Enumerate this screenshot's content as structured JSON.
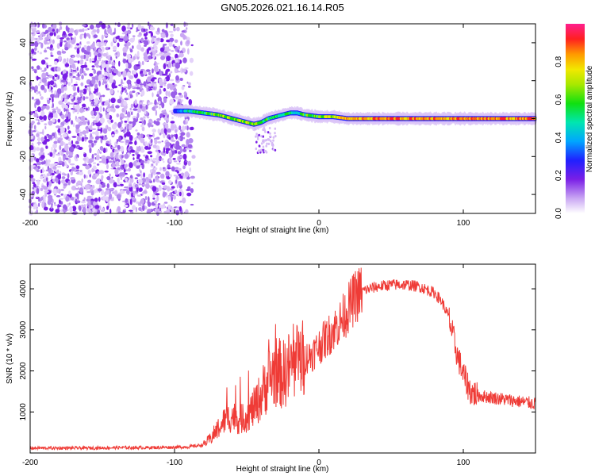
{
  "title": "GN05.2026.021.16.14.R05",
  "colors": {
    "line": "#ef3b36",
    "axis": "#000000",
    "background": "#ffffff"
  },
  "chart_data": [
    {
      "type": "heatmap",
      "name": "spectrogram",
      "xlabel": "Height of straight line (km)",
      "ylabel": "Frequency (Hz)",
      "xlim": [
        -200,
        150
      ],
      "ylim": [
        -50,
        50
      ],
      "xticks": [
        -200,
        -100,
        0,
        100
      ],
      "xtick_labels": [
        "-200",
        "-100",
        "0",
        "100"
      ],
      "yticks": [
        -40,
        -20,
        0,
        20,
        40
      ],
      "ytick_labels": [
        "-40",
        "-20",
        "0",
        "20",
        "40"
      ],
      "noise_region_x": [
        -200,
        -85
      ],
      "colorbar": {
        "label": "Normalized spectral amplitude",
        "range": [
          0,
          1
        ],
        "ticks": [
          0.0,
          0.2,
          0.4,
          0.6,
          0.8
        ],
        "tick_labels": [
          "0.0",
          "0.2",
          "0.4",
          "0.6",
          "0.8"
        ]
      },
      "ridge": {
        "x": [
          -100,
          -90,
          -80,
          -70,
          -60,
          -50,
          -45,
          -40,
          -35,
          -30,
          -25,
          -20,
          -15,
          -10,
          0,
          10,
          20,
          40,
          60,
          80,
          100,
          120,
          140,
          150
        ],
        "freq": [
          4,
          4,
          3,
          2,
          0,
          -2,
          -3,
          -2,
          0,
          1,
          2,
          3,
          3,
          2,
          1,
          1,
          0,
          0,
          0,
          0,
          0,
          0,
          0,
          0
        ],
        "amplitude": [
          0.3,
          0.5,
          0.6,
          0.65,
          0.7,
          0.7,
          0.65,
          0.6,
          0.6,
          0.55,
          0.6,
          0.55,
          0.5,
          0.6,
          0.65,
          0.75,
          0.85,
          0.9,
          0.9,
          0.9,
          0.9,
          0.9,
          0.9,
          0.9
        ]
      }
    },
    {
      "type": "line",
      "name": "snr",
      "xlabel": "Height of straight line (km)",
      "ylabel": "SNR (10 * v/v)",
      "xlim": [
        -200,
        150
      ],
      "ylim": [
        0,
        4600
      ],
      "xticks": [
        -200,
        -100,
        0,
        100
      ],
      "xtick_labels": [
        "-200",
        "-100",
        "0",
        "100"
      ],
      "yticks": [
        1000,
        2000,
        3000,
        4000
      ],
      "ytick_labels": [
        "1000",
        "2000",
        "3000",
        "4000"
      ],
      "series": [
        {
          "name": "SNR",
          "x": [
            -200,
            -180,
            -160,
            -140,
            -120,
            -100,
            -90,
            -80,
            -75,
            -70,
            -65,
            -60,
            -55,
            -50,
            -45,
            -40,
            -35,
            -30,
            -25,
            -20,
            -15,
            -10,
            -5,
            0,
            5,
            10,
            15,
            20,
            25,
            30,
            40,
            50,
            60,
            70,
            80,
            85,
            90,
            95,
            100,
            105,
            110,
            120,
            130,
            140,
            150
          ],
          "y": [
            120,
            120,
            120,
            130,
            130,
            140,
            150,
            200,
            350,
            600,
            800,
            900,
            800,
            900,
            1100,
            1400,
            1800,
            2000,
            1900,
            2100,
            2200,
            2300,
            2400,
            2600,
            2800,
            3000,
            3200,
            3500,
            3800,
            3950,
            4050,
            4100,
            4100,
            4050,
            3900,
            3700,
            3300,
            2500,
            1900,
            1500,
            1400,
            1350,
            1300,
            1250,
            1200
          ]
        }
      ]
    }
  ]
}
